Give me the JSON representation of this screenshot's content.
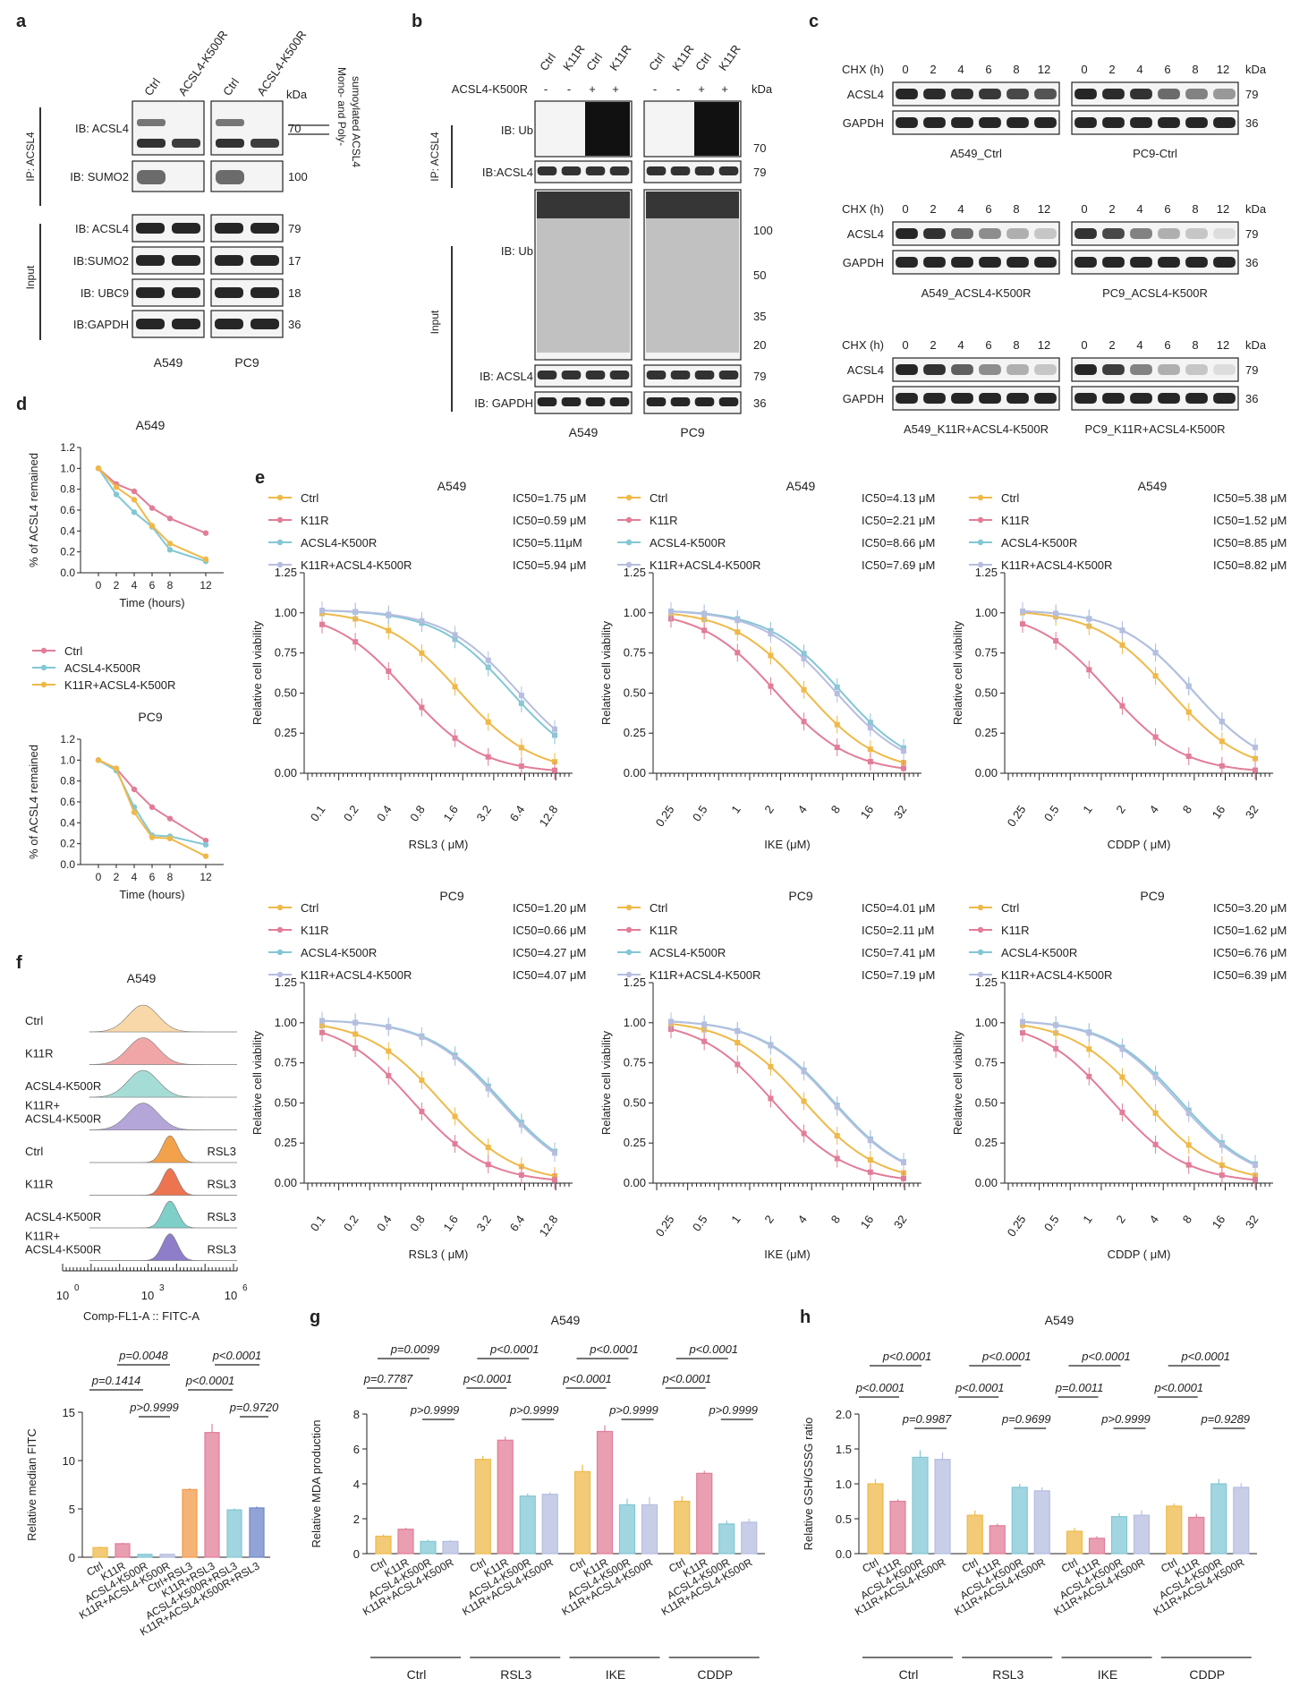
{
  "colors": {
    "ctrl": "#EFB949",
    "k11r": "#E27D98",
    "k500r": "#82C7D4",
    "combo": "#B6BEE0",
    "orange": "#F2994B",
    "purple": "#8E7DC8",
    "darkblue": "#6D86C8"
  },
  "labels": [
    "a",
    "b",
    "c",
    "d",
    "e",
    "f",
    "g",
    "h"
  ],
  "panel_a": {
    "lanes": [
      "Ctrl",
      "ACSL4-K500R",
      "Ctrl",
      "ACSL4-K500R"
    ],
    "kda": "kDa",
    "ip_label": "IP: ACSL4",
    "input_label": "Input",
    "rows": [
      "IB: ACSL4",
      "IB: SUMO2",
      "IB: ACSL4",
      "IB:SUMO2",
      "IB: UBC9",
      "IB:GAPDH"
    ],
    "mw": [
      "70",
      "100",
      "79",
      "17",
      "18",
      "36"
    ],
    "annotation": "Mono- and Poly-sumoylated ACSL4",
    "cells": [
      "A549",
      "PC9"
    ]
  },
  "panel_b": {
    "lanes": [
      "Ctrl",
      "K11R",
      "Ctrl",
      "K11R",
      "Ctrl",
      "K11R",
      "Ctrl",
      "K11R"
    ],
    "condition_label": "ACSL4-K500R",
    "signs": [
      "-",
      "-",
      "+",
      "+",
      "-",
      "-",
      "+",
      "+"
    ],
    "kda": "kDa",
    "ip_label": "IP: ACSL4",
    "input_label": "Input",
    "rows": [
      "IB: Ub",
      "IB:ACSL4",
      "IB: Ub",
      "IB: ACSL4",
      "IB: GAPDH"
    ],
    "mw": [
      "70",
      "79",
      "100",
      "50",
      "35",
      "20",
      "79",
      "36"
    ],
    "cells": [
      "A549",
      "PC9"
    ]
  },
  "panel_c": {
    "chx_label": "CHX (h)",
    "times": [
      "0",
      "2",
      "4",
      "6",
      "8",
      "12"
    ],
    "kda": "kDa",
    "rows": [
      "ACSL4",
      "GAPDH"
    ],
    "mw": [
      "79",
      "36"
    ],
    "captions": [
      "A549_Ctrl",
      "PC9-Ctrl",
      "A549_ACSL4-K500R",
      "PC9_ACSL4-K500R",
      "A549_K11R+ACSL4-K500R",
      "PC9_K11R+ACSL4-K500R"
    ]
  },
  "panel_d": {
    "titles": [
      "A549",
      "PC9"
    ],
    "ylabel": "% of ACSL4 remained",
    "xlabel": "Time (hours)",
    "legend": [
      "Ctrl",
      "ACSL4-K500R",
      "K11R+ACSL4-K500R"
    ],
    "chart_data": [
      {
        "type": "line",
        "title": "A549",
        "x": [
          0,
          2,
          4,
          6,
          8,
          12
        ],
        "ylim": [
          0,
          1.2
        ],
        "series": [
          {
            "name": "Ctrl",
            "values": [
              1.0,
              0.85,
              0.78,
              0.62,
              0.52,
              0.38
            ]
          },
          {
            "name": "ACSL4-K500R",
            "values": [
              1.0,
              0.75,
              0.58,
              0.44,
              0.22,
              0.11
            ]
          },
          {
            "name": "K11R+ACSL4-K500R",
            "values": [
              1.0,
              0.82,
              0.7,
              0.45,
              0.28,
              0.13
            ]
          }
        ]
      },
      {
        "type": "line",
        "title": "PC9",
        "x": [
          0,
          2,
          4,
          6,
          8,
          12
        ],
        "ylim": [
          0,
          1.2
        ],
        "series": [
          {
            "name": "Ctrl",
            "values": [
              1.0,
              0.92,
              0.72,
              0.55,
              0.44,
              0.23
            ]
          },
          {
            "name": "ACSL4-K500R",
            "values": [
              1.0,
              0.9,
              0.55,
              0.28,
              0.27,
              0.19
            ]
          },
          {
            "name": "K11R+ACSL4-K500R",
            "values": [
              1.0,
              0.92,
              0.5,
              0.26,
              0.25,
              0.08
            ]
          }
        ]
      }
    ]
  },
  "panel_e": {
    "ylabel": "Relative cell viability",
    "legend": [
      "Ctrl",
      "K11R",
      "ACSL4-K500R",
      "K11R+ACSL4-K500R"
    ],
    "chart_data": [
      {
        "type": "line",
        "cell": "A549",
        "drug": "RSL3",
        "xlabel": "RSL3 ( μM)",
        "ticks": [
          "0.1",
          "0.2",
          "0.4",
          "0.8",
          "1.6",
          "3.2",
          "6.4",
          "12.8"
        ],
        "ic50": [
          "IC50=1.75 μM",
          "IC50=0.59 μM",
          "IC50=5.11μM",
          "IC50=5.94 μM"
        ],
        "ic50_value": [
          1.75,
          0.59,
          5.11,
          5.94
        ]
      },
      {
        "type": "line",
        "cell": "A549",
        "drug": "IKE",
        "xlabel": "IKE (μM)",
        "ticks": [
          "0.25",
          "0.5",
          "1",
          "2",
          "4",
          "8",
          "16",
          "32"
        ],
        "ic50": [
          "IC50=4.13 μM",
          "IC50=2.21 μM",
          "IC50=8.66 μM",
          "IC50=7.69 μM"
        ],
        "ic50_value": [
          4.13,
          2.21,
          8.66,
          7.69
        ]
      },
      {
        "type": "line",
        "cell": "A549",
        "drug": "CDDP",
        "xlabel": "CDDP ( μM)",
        "ticks": [
          "0.25",
          "0.5",
          "1",
          "2",
          "4",
          "8",
          "16",
          "32"
        ],
        "ic50": [
          "IC50=5.38 μM",
          "IC50=1.52 μM",
          "IC50=8.85 μM",
          "IC50=8.82 μM"
        ],
        "ic50_value": [
          5.38,
          1.52,
          8.85,
          8.82
        ]
      },
      {
        "type": "line",
        "cell": "PC9",
        "drug": "RSL3",
        "xlabel": "RSL3 ( μM)",
        "ticks": [
          "0.1",
          "0.2",
          "0.4",
          "0.8",
          "1.6",
          "3.2",
          "6.4",
          "12.8"
        ],
        "ic50": [
          "IC50=1.20 μM",
          "IC50=0.66 μM",
          "IC50=4.27 μM",
          "IC50=4.07 μM"
        ],
        "ic50_value": [
          1.2,
          0.66,
          4.27,
          4.07
        ]
      },
      {
        "type": "line",
        "cell": "PC9",
        "drug": "IKE",
        "xlabel": "IKE (μM)",
        "ticks": [
          "0.25",
          "0.5",
          "1",
          "2",
          "4",
          "8",
          "16",
          "32"
        ],
        "ic50": [
          "IC50=4.01 μM",
          "IC50=2.11 μM",
          "IC50=7.41 μM",
          "IC50=7.19 μM"
        ],
        "ic50_value": [
          4.01,
          2.11,
          7.41,
          7.19
        ]
      },
      {
        "type": "line",
        "cell": "PC9",
        "drug": "CDDP",
        "xlabel": "CDDP ( μM)",
        "ticks": [
          "0.25",
          "0.5",
          "1",
          "2",
          "4",
          "8",
          "16",
          "32"
        ],
        "ic50": [
          "IC50=3.20 μM",
          "IC50=1.62 μM",
          "IC50=6.76 μM",
          "IC50=6.39 μM"
        ],
        "ic50_value": [
          3.2,
          1.62,
          6.76,
          6.39
        ]
      }
    ]
  },
  "panel_f": {
    "title": "A549",
    "rows": [
      {
        "label": "Ctrl",
        "tag": ""
      },
      {
        "label": "K11R",
        "tag": ""
      },
      {
        "label": "ACSL4-K500R",
        "tag": ""
      },
      {
        "label": "K11R+\nACSL4-K500R",
        "tag": ""
      },
      {
        "label": "Ctrl",
        "tag": "RSL3"
      },
      {
        "label": "K11R",
        "tag": "RSL3"
      },
      {
        "label": "ACSL4-K500R",
        "tag": "RSL3"
      },
      {
        "label": "K11R+\nACSL4-K500R",
        "tag": "RSL3"
      }
    ],
    "xaxis": "Comp-FL1-A :: FITC-A",
    "xticks": [
      "10",
      "10",
      "10"
    ],
    "xexp": [
      "0",
      "3",
      "6"
    ],
    "bar_ylabel": "Relative median FITC",
    "bar_categories": [
      "Ctrl",
      "K11R",
      "ACSL4-K500R",
      "K11R+ACSL4-K500R",
      "Ctrl+RSL3",
      "K11R+RSL3",
      "ACSL4-K500R+RSL3",
      "K11R+ACSL4-K500R+RSL3"
    ],
    "bar_values": [
      1.0,
      1.4,
      0.3,
      0.3,
      7.0,
      12.9,
      4.9,
      5.1
    ],
    "bar_errors": [
      0.1,
      0.1,
      0.05,
      0.05,
      0.15,
      0.9,
      0.15,
      0.15
    ],
    "ylim": [
      0,
      15
    ],
    "pvalues": [
      "p=0.0048",
      "p<0.0001",
      "p=0.1414",
      "p<0.0001",
      "p>0.9999",
      "p=0.9720"
    ]
  },
  "panel_g": {
    "title": "A549",
    "ylabel": "Relative MDA production",
    "ylim": [
      0,
      8
    ],
    "groups": [
      "Ctrl",
      "RSL3",
      "IKE",
      "CDDP"
    ],
    "categories": [
      "Ctrl",
      "K11R",
      "ACSL4-K500R",
      "K11R+ACSL4-K500R"
    ],
    "values": [
      [
        1.0,
        1.4,
        0.7,
        0.7
      ],
      [
        5.4,
        6.5,
        3.3,
        3.4
      ],
      [
        4.7,
        7.0,
        2.8,
        2.8
      ],
      [
        3.0,
        4.6,
        1.7,
        1.8
      ]
    ],
    "errors": [
      [
        0.1,
        0.08,
        0.1,
        0.08
      ],
      [
        0.2,
        0.2,
        0.15,
        0.12
      ],
      [
        0.4,
        0.35,
        0.35,
        0.45
      ],
      [
        0.3,
        0.15,
        0.2,
        0.2
      ]
    ],
    "pvalues_top": [
      "p=0.0099",
      "p<0.0001",
      "p<0.0001",
      "p<0.0001"
    ],
    "pvalues_mid": [
      "p=0.7787",
      "p<0.0001",
      "p<0.0001",
      "p<0.0001"
    ],
    "pvalues_low": [
      "p>0.9999",
      "p>0.9999",
      "p>0.9999",
      "p>0.9999"
    ]
  },
  "panel_h": {
    "title": "A549",
    "ylabel": "Relative GSH/GSSG ratio",
    "ylim": [
      0,
      2
    ],
    "groups": [
      "Ctrl",
      "RSL3",
      "IKE",
      "CDDP"
    ],
    "categories": [
      "Ctrl",
      "K11R",
      "ACSL4-K500R",
      "K11R+ACSL4-K500R"
    ],
    "values": [
      [
        1.0,
        0.75,
        1.38,
        1.35
      ],
      [
        0.55,
        0.4,
        0.95,
        0.9
      ],
      [
        0.32,
        0.22,
        0.53,
        0.55
      ],
      [
        0.68,
        0.52,
        1.0,
        0.95
      ]
    ],
    "errors": [
      [
        0.07,
        0.03,
        0.1,
        0.1
      ],
      [
        0.07,
        0.03,
        0.05,
        0.05
      ],
      [
        0.05,
        0.03,
        0.05,
        0.07
      ],
      [
        0.04,
        0.05,
        0.07,
        0.06
      ]
    ],
    "pvalues_top": [
      "p<0.0001",
      "p<0.0001",
      "p<0.0001",
      "p<0.0001"
    ],
    "pvalues_mid": [
      "p<0.0001",
      "p<0.0001",
      "p=0.0011",
      "p<0.0001"
    ],
    "pvalues_low": [
      "p=0.9987",
      "p=0.9699",
      "p>0.9999",
      "p=0.9289"
    ]
  }
}
